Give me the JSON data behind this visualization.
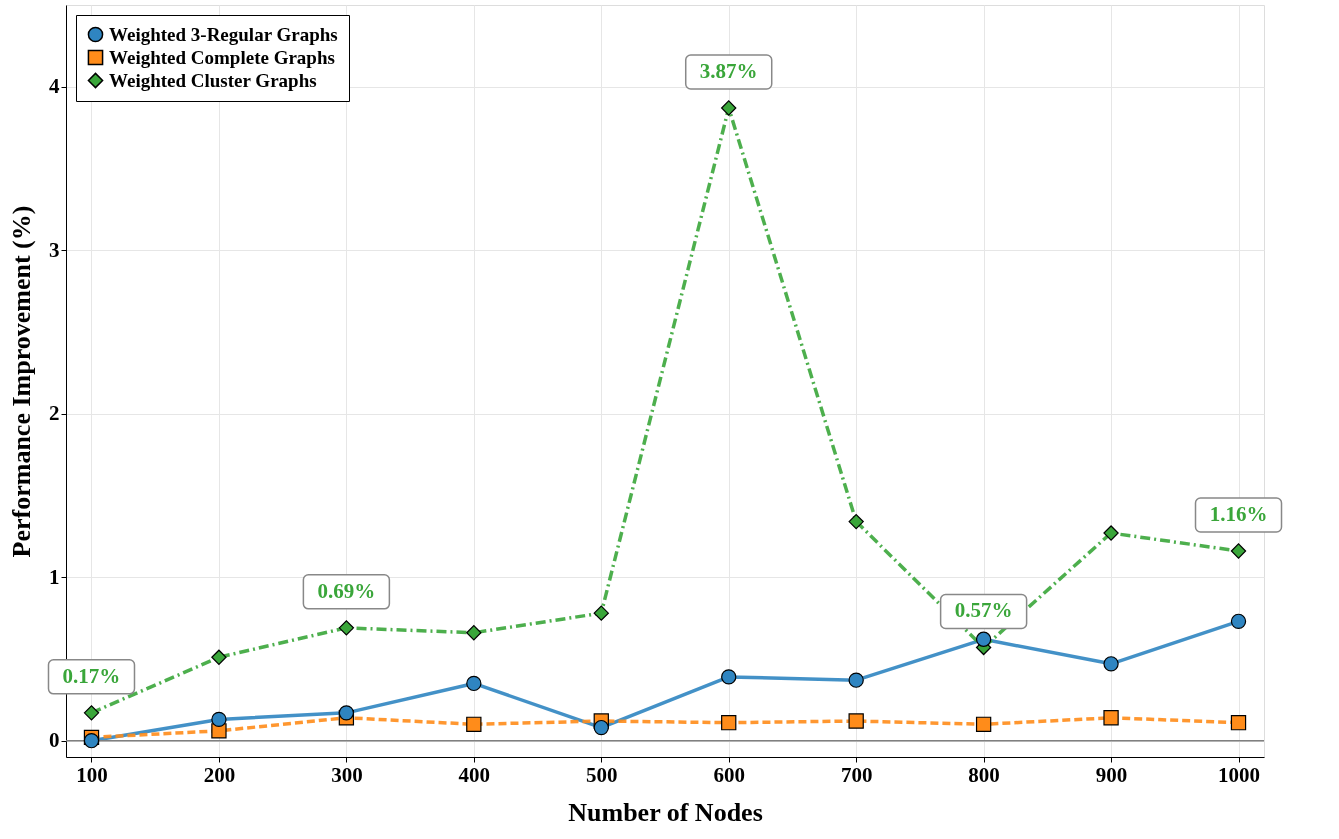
{
  "chart_data": {
    "type": "line",
    "xlabel": "Number of Nodes",
    "ylabel": "Performance Improvement (%)",
    "x": [
      100,
      200,
      300,
      400,
      500,
      600,
      700,
      800,
      900,
      1000
    ],
    "series": [
      {
        "name": "Weighted 3-Regular Graphs",
        "color": "#2f85c1",
        "marker": "circle",
        "line_style": "solid",
        "values": [
          0.0,
          0.13,
          0.17,
          0.35,
          0.08,
          0.39,
          0.37,
          0.62,
          0.47,
          0.73
        ]
      },
      {
        "name": "Weighted Complete Graphs",
        "color": "#ff8c1a",
        "marker": "square",
        "line_style": "dashed",
        "values": [
          0.02,
          0.06,
          0.14,
          0.1,
          0.12,
          0.11,
          0.12,
          0.1,
          0.14,
          0.11
        ]
      },
      {
        "name": "Weighted Cluster Graphs",
        "color": "#3aa63a",
        "marker": "diamond",
        "line_style": "dashdot",
        "values": [
          0.17,
          0.51,
          0.69,
          0.66,
          0.78,
          3.87,
          1.34,
          0.57,
          1.27,
          1.16
        ]
      }
    ],
    "annotations": [
      {
        "text": "0.17%",
        "x": 100,
        "y": 0.17
      },
      {
        "text": "0.69%",
        "x": 300,
        "y": 0.69
      },
      {
        "text": "3.87%",
        "x": 600,
        "y": 3.87
      },
      {
        "text": "0.57%",
        "x": 800,
        "y": 0.57
      },
      {
        "text": "1.16%",
        "x": 1000,
        "y": 1.16
      }
    ],
    "ref_lines": [
      {
        "axis": "y",
        "value": 0,
        "color": "#808080"
      }
    ],
    "xlim": [
      80,
      1020
    ],
    "xticks": [
      100,
      200,
      300,
      400,
      500,
      600,
      700,
      800,
      900,
      1000
    ],
    "ylim": [
      -0.1,
      4.5
    ],
    "yticks": [
      0,
      1,
      2,
      3,
      4
    ],
    "grid": true,
    "legend": "top left"
  }
}
